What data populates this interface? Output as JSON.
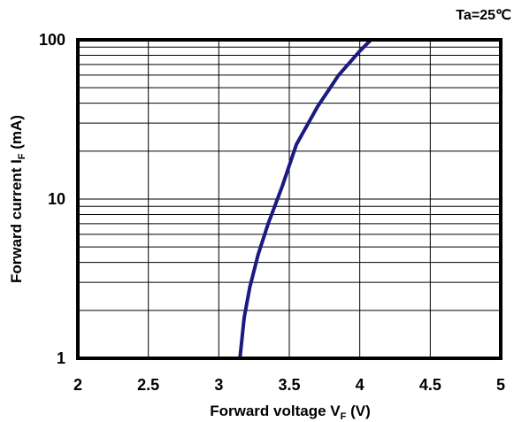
{
  "chart_data": {
    "type": "line",
    "title": "",
    "condition": "Ta=25℃",
    "xlabel": {
      "main": "Forward voltage V",
      "sub": "F",
      "unit": " (V)"
    },
    "ylabel": {
      "main": "Forward current  I",
      "sub": "F",
      "unit": "  (mA)"
    },
    "xlim": [
      2,
      5
    ],
    "ylim": [
      1,
      100
    ],
    "yscale": "log",
    "grid": true,
    "x_ticks": [
      "2",
      "2.5",
      "3",
      "3.5",
      "4",
      "4.5",
      "5"
    ],
    "y_ticks": [
      "1",
      "10",
      "100"
    ],
    "line_color": "#1a1a80",
    "series": [
      {
        "x": [
          3.15,
          3.18,
          3.22,
          3.28,
          3.35,
          3.45,
          3.55,
          3.7,
          3.85,
          4.0,
          4.08
        ],
        "y": [
          1,
          1.8,
          2.8,
          4.5,
          7,
          12,
          22,
          38,
          60,
          85,
          100
        ]
      }
    ]
  }
}
